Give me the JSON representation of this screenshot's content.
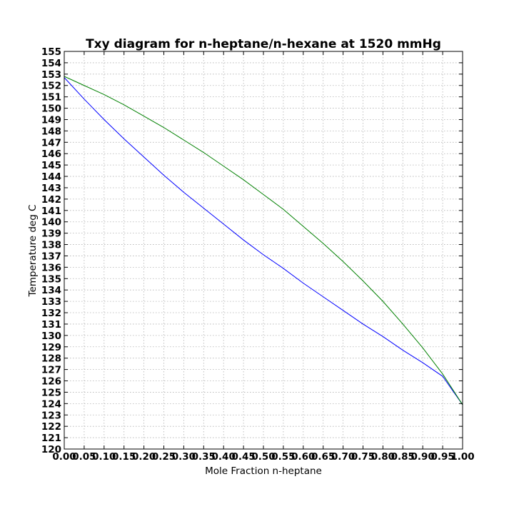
{
  "chart_data": {
    "type": "line",
    "title": "Txy diagram for n-heptane/n-hexane at 1520 mmHg",
    "xlabel": "Mole Fraction n-heptane",
    "ylabel": "Temperature deg C",
    "xlim": [
      0.0,
      1.0
    ],
    "ylim": [
      120,
      155
    ],
    "grid": true,
    "x_ticks": [
      "0.00",
      "0.05",
      "0.10",
      "0.15",
      "0.20",
      "0.25",
      "0.30",
      "0.35",
      "0.40",
      "0.45",
      "0.50",
      "0.55",
      "0.60",
      "0.65",
      "0.70",
      "0.75",
      "0.80",
      "0.85",
      "0.90",
      "0.95",
      "1.00"
    ],
    "y_ticks": [
      "120",
      "121",
      "122",
      "123",
      "124",
      "125",
      "126",
      "127",
      "128",
      "129",
      "130",
      "131",
      "132",
      "133",
      "134",
      "135",
      "136",
      "137",
      "138",
      "139",
      "140",
      "141",
      "142",
      "143",
      "144",
      "145",
      "146",
      "147",
      "148",
      "149",
      "150",
      "151",
      "152",
      "153",
      "154",
      "155"
    ],
    "series": [
      {
        "color": "#0000ff",
        "x": [
          0.0,
          0.05,
          0.1,
          0.15,
          0.2,
          0.25,
          0.3,
          0.35,
          0.4,
          0.45,
          0.5,
          0.55,
          0.6,
          0.65,
          0.7,
          0.75,
          0.8,
          0.85,
          0.9,
          0.95,
          1.0
        ],
        "y": [
          152.7,
          150.8,
          149.0,
          147.3,
          145.7,
          144.1,
          142.6,
          141.2,
          139.8,
          138.4,
          137.1,
          135.9,
          134.6,
          133.4,
          132.2,
          131.0,
          129.9,
          128.7,
          127.6,
          126.4,
          123.9
        ]
      },
      {
        "color": "#008000",
        "x": [
          0.0,
          0.05,
          0.1,
          0.15,
          0.2,
          0.25,
          0.3,
          0.35,
          0.4,
          0.45,
          0.5,
          0.55,
          0.6,
          0.65,
          0.7,
          0.75,
          0.8,
          0.85,
          0.9,
          0.95,
          1.0
        ],
        "y": [
          152.8,
          152.0,
          151.2,
          150.3,
          149.3,
          148.3,
          147.2,
          146.1,
          144.9,
          143.7,
          142.4,
          141.1,
          139.6,
          138.1,
          136.5,
          134.8,
          133.0,
          131.0,
          128.9,
          126.6,
          123.9
        ]
      }
    ]
  }
}
